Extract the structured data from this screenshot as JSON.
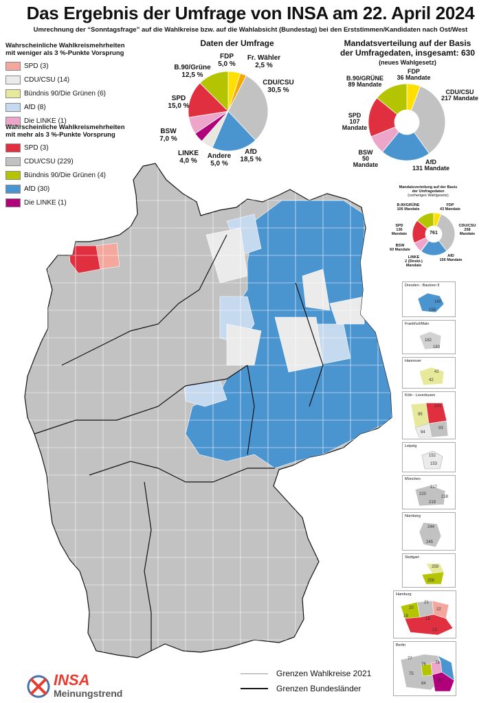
{
  "header": {
    "title": "Das Ergebnis der Umfrage von INSA am 22. April 2024",
    "subtitle": "Umrechnung der “Sonntagsfrage” auf die Wahlkreise bzw. auf die Wahlabsicht (Bundestag) bei den Erststimmen/Kandidaten nach Ost/West"
  },
  "legend_weak": {
    "heading": [
      "Wahrscheinliche Wahlkreismehrheiten",
      "mit weniger als 3 %-Punkte Vorsprung"
    ],
    "items": [
      {
        "label": "SPD (3)",
        "color": "#f4a79d"
      },
      {
        "label": "CDU/CSU (14)",
        "color": "#ebebeb"
      },
      {
        "label": "Bündnis 90/Die Grünen (6)",
        "color": "#e6e89a"
      },
      {
        "label": "AfD (8)",
        "color": "#c5d9ef"
      },
      {
        "label": "Die LINKE (1)",
        "color": "#eda6c9"
      }
    ]
  },
  "legend_strong": {
    "heading": [
      "Wahrscheinliche Wahlkreismehrheiten",
      "mit mehr als 3 %-Punkte Vorsprung"
    ],
    "items": [
      {
        "label": "SPD (3)",
        "color": "#e03040"
      },
      {
        "label": "CDU/CSU (229)",
        "color": "#c2c2c2"
      },
      {
        "label": "Bündnis 90/Die Grünen (4)",
        "color": "#b5c400"
      },
      {
        "label": "AfD (30)",
        "color": "#4a94d0"
      },
      {
        "label": "Die LINKE (1)",
        "color": "#b0007a"
      }
    ]
  },
  "survey": {
    "title": "Daten der Umfrage",
    "labels": {
      "fdp": [
        "FDP",
        "5,0 %"
      ],
      "fw": [
        "Fr. Wähler",
        "2,5 %"
      ],
      "cdu": [
        "CDU/CSU",
        "30,5 %"
      ],
      "afd": [
        "AfD",
        "18,5 %"
      ],
      "andere": [
        "Andere",
        "5,0 %"
      ],
      "linke": [
        "LINKE",
        "4,0 %"
      ],
      "bsw": [
        "BSW",
        "7,0 %"
      ],
      "spd": [
        "SPD",
        "15,0 %"
      ],
      "gruene": [
        "B.90/Grüne",
        "12,5 %"
      ]
    }
  },
  "seats": {
    "title": [
      "Mandatsverteilung auf der Basis",
      "der Umfragedaten, insgesamt: 630"
    ],
    "note": "(neues Wahlgesetz)",
    "labels": {
      "fdp": [
        "FDP",
        "36 Mandate"
      ],
      "cdu": [
        "CDU/CSU",
        "217 Mandate"
      ],
      "afd": [
        "AfD",
        "131 Mandate"
      ],
      "bsw": [
        "BSW",
        "50",
        "Mandate"
      ],
      "spd": [
        "SPD",
        "107",
        "Mandate"
      ],
      "gruene": [
        "B.90/GRÜNE",
        "89 Mandate"
      ]
    }
  },
  "seats_old": {
    "title": [
      "Mandatsverteilung auf der Basis",
      "der Umfragedaten",
      "(vorheriges Wahlgesetz)"
    ],
    "total": "761",
    "labels": {
      "fdp": [
        "FDP",
        "43 Mandate"
      ],
      "cdu": [
        "CDU/CSU",
        "258",
        "Mandate"
      ],
      "afd": [
        "AfD",
        "156 Mandate"
      ],
      "linke": [
        "LINKE",
        "2 (Direkt-)",
        "Mandate"
      ],
      "bsw": [
        "BSW",
        "60 Mandate"
      ],
      "spd": [
        "SPD",
        "136",
        "Mandate"
      ],
      "gruene": [
        "B.90/GRÜNE",
        "106 Mandate"
      ]
    }
  },
  "chart_data": [
    {
      "type": "pie",
      "title": "Daten der Umfrage",
      "categories": [
        "FDP",
        "Fr. Wähler",
        "CDU/CSU",
        "AfD",
        "Andere",
        "LINKE",
        "BSW",
        "SPD",
        "B.90/Grüne"
      ],
      "values": [
        5.0,
        2.5,
        30.5,
        18.5,
        5.0,
        4.0,
        7.0,
        15.0,
        12.5
      ],
      "colors": [
        "#ffe000",
        "#f5a800",
        "#c2c2c2",
        "#4a94d0",
        "#e8e8e0",
        "#b0007a",
        "#eda6c9",
        "#e03040",
        "#b5c400"
      ]
    },
    {
      "type": "pie",
      "title": "Mandatsverteilung auf der Basis der Umfragedaten, insgesamt: 630",
      "categories": [
        "FDP",
        "CDU/CSU",
        "AfD",
        "BSW",
        "SPD",
        "B.90/GRÜNE"
      ],
      "values": [
        36,
        217,
        131,
        50,
        107,
        89
      ],
      "colors": [
        "#ffe000",
        "#c2c2c2",
        "#4a94d0",
        "#eda6c9",
        "#e03040",
        "#b5c400"
      ]
    },
    {
      "type": "pie",
      "title": "Mandatsverteilung auf der Basis der Umfragedaten (vorheriges Wahlgesetz)",
      "categories": [
        "FDP",
        "CDU/CSU",
        "AfD",
        "LINKE",
        "BSW",
        "SPD",
        "B.90/GRÜNE"
      ],
      "values": [
        43,
        258,
        156,
        2,
        60,
        136,
        106
      ],
      "colors": [
        "#ffe000",
        "#c2c2c2",
        "#4a94d0",
        "#b0007a",
        "#eda6c9",
        "#e03040",
        "#b5c400"
      ]
    }
  ],
  "insets": [
    {
      "title": "Dresden - Bautzen II",
      "numbers": [
        "160",
        "159"
      ]
    },
    {
      "title": "Frankfurt/Main",
      "numbers": [
        "182",
        "183"
      ]
    },
    {
      "title": "Hannover",
      "numbers": [
        "41",
        "42"
      ]
    },
    {
      "title": "Köln - Leverkusen",
      "numbers": [
        "101",
        "95",
        "94",
        "93"
      ]
    },
    {
      "title": "Leipzig",
      "numbers": [
        "152",
        "153"
      ]
    },
    {
      "title": "München",
      "numbers": [
        "217",
        "220",
        "218",
        "219"
      ]
    },
    {
      "title": "Nürnberg",
      "numbers": [
        "244",
        "245"
      ]
    },
    {
      "title": "Stuttgart",
      "numbers": [
        "259",
        "258"
      ]
    },
    {
      "title": "Hamburg",
      "numbers": [
        "21",
        "20",
        "22",
        "19",
        "18",
        "23"
      ]
    },
    {
      "title": "Berlin",
      "numbers": [
        "77",
        "76",
        "75",
        "78",
        "83",
        "84"
      ]
    }
  ],
  "map_key": {
    "wahlkreise": "Grenzen Wahlkreise 2021",
    "laender": "Grenzen Bundesländer"
  },
  "logo": {
    "brand": "INSA",
    "sub": "Meinungstrend"
  }
}
